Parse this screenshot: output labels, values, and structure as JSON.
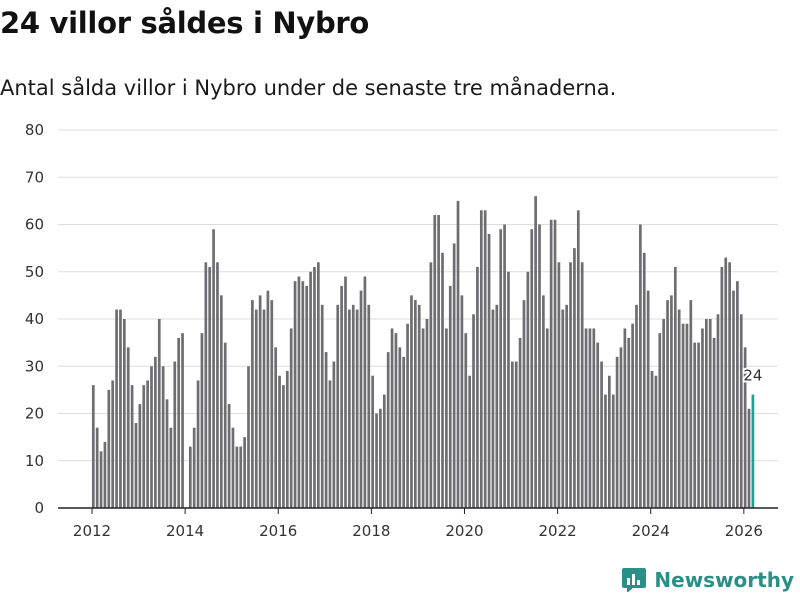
{
  "title": "24 villor såldes i Nybro",
  "subtitle": "Antal sålda villor i Nybro under de senaste tre månaderna.",
  "brand": {
    "name": "Newsworthy",
    "color": "#2a8f86"
  },
  "colors": {
    "bar": "#6e6d72",
    "highlight": "#1aa394",
    "grid": "#dddddd",
    "axis": "#222222"
  },
  "chart_data": {
    "type": "bar",
    "title": "24 villor såldes i Nybro",
    "xlabel": "",
    "ylabel": "",
    "ylim": [
      0,
      80
    ],
    "yticks": [
      0,
      10,
      20,
      30,
      40,
      50,
      60,
      70,
      80
    ],
    "xticks": [
      "2012",
      "2014",
      "2016",
      "2018",
      "2020",
      "2022",
      "2024",
      "2026"
    ],
    "grid": true,
    "start": "2012-01",
    "end": "2026-03",
    "highlight_label": "24",
    "values": [
      26,
      17,
      12,
      14,
      25,
      27,
      42,
      42,
      40,
      34,
      26,
      18,
      22,
      26,
      27,
      30,
      32,
      40,
      30,
      23,
      17,
      31,
      36,
      37,
      0,
      13,
      17,
      27,
      37,
      52,
      51,
      59,
      52,
      45,
      35,
      22,
      17,
      13,
      13,
      15,
      30,
      44,
      42,
      45,
      42,
      46,
      44,
      34,
      28,
      26,
      29,
      38,
      48,
      49,
      48,
      47,
      50,
      51,
      52,
      43,
      33,
      27,
      31,
      43,
      47,
      49,
      42,
      43,
      42,
      46,
      49,
      43,
      28,
      20,
      21,
      24,
      33,
      38,
      37,
      34,
      32,
      39,
      45,
      44,
      43,
      38,
      40,
      52,
      62,
      62,
      54,
      38,
      47,
      56,
      65,
      45,
      37,
      28,
      41,
      51,
      63,
      63,
      58,
      42,
      43,
      59,
      60,
      50,
      31,
      31,
      36,
      44,
      50,
      59,
      66,
      60,
      45,
      38,
      61,
      61,
      52,
      42,
      43,
      52,
      55,
      63,
      52,
      38,
      38,
      38,
      35,
      31,
      24,
      28,
      24,
      32,
      34,
      38,
      36,
      39,
      43,
      60,
      54,
      46,
      29,
      28,
      37,
      40,
      44,
      45,
      51,
      42,
      39,
      39,
      44,
      35,
      35,
      38,
      40,
      40,
      36,
      41,
      51,
      53,
      52,
      46,
      48,
      41,
      34,
      21,
      24
    ]
  }
}
